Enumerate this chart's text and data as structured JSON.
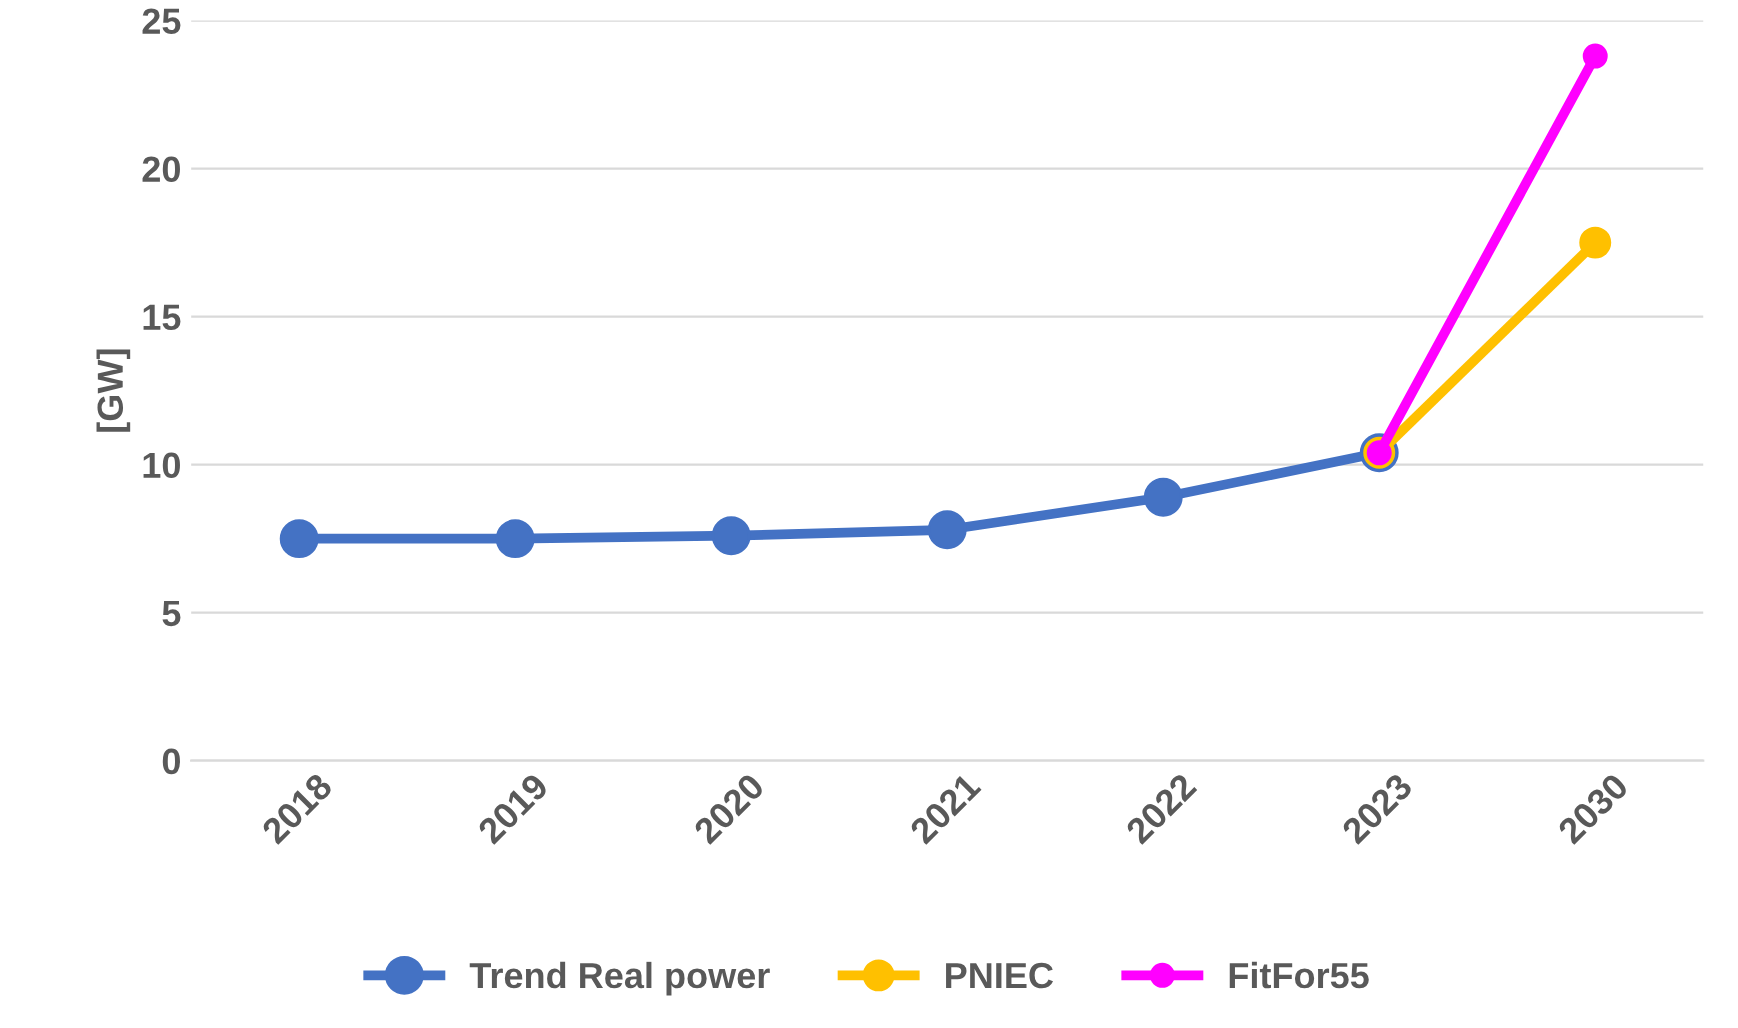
{
  "chart_data": {
    "type": "line",
    "ylabel": "[GW]",
    "categories": [
      "2018",
      "2019",
      "2020",
      "2021",
      "2022",
      "2023",
      "2030"
    ],
    "series": [
      {
        "name": "Trend Real power",
        "color": "#4472c4",
        "values": [
          7.5,
          7.5,
          7.6,
          7.8,
          8.9,
          10.4,
          null
        ]
      },
      {
        "name": "PNIEC",
        "color": "#ffc000",
        "values": [
          null,
          null,
          null,
          null,
          null,
          10.4,
          17.5
        ]
      },
      {
        "name": "FitFor55",
        "color": "#ff00ff",
        "values": [
          null,
          null,
          null,
          null,
          null,
          10.4,
          23.8
        ]
      }
    ],
    "ylim": [
      0,
      25
    ],
    "yticks": [
      0,
      5,
      10,
      15,
      20,
      25
    ],
    "grid": "y",
    "legend": "bottom",
    "marker": "circle",
    "line_style": "solid"
  }
}
